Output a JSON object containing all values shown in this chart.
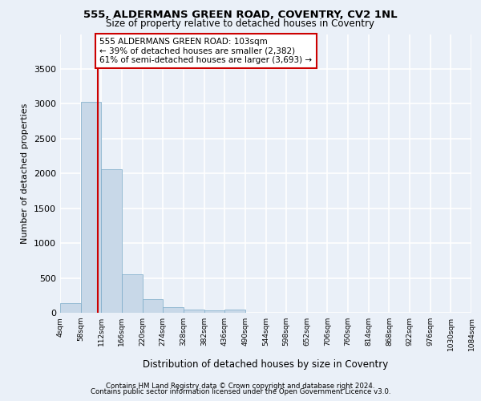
{
  "title_line1": "555, ALDERMANS GREEN ROAD, COVENTRY, CV2 1NL",
  "title_line2": "Size of property relative to detached houses in Coventry",
  "xlabel": "Distribution of detached houses by size in Coventry",
  "ylabel": "Number of detached properties",
  "bin_edges": [
    4,
    58,
    112,
    166,
    220,
    274,
    328,
    382,
    436,
    490,
    544,
    598,
    652,
    706,
    760,
    814,
    868,
    922,
    976,
    1030,
    1084
  ],
  "bar_heights": [
    140,
    3030,
    2060,
    550,
    195,
    75,
    50,
    35,
    50,
    0,
    0,
    0,
    0,
    0,
    0,
    0,
    0,
    0,
    0,
    0
  ],
  "bar_color": "#c8d8e8",
  "bar_edgecolor": "#7aaac8",
  "property_size": 103,
  "vline_color": "#cc0000",
  "annotation_line1": "555 ALDERMANS GREEN ROAD: 103sqm",
  "annotation_line2": "← 39% of detached houses are smaller (2,382)",
  "annotation_line3": "61% of semi-detached houses are larger (3,693) →",
  "annotation_box_edgecolor": "#cc0000",
  "ylim": [
    0,
    4000
  ],
  "yticks": [
    0,
    500,
    1000,
    1500,
    2000,
    2500,
    3000,
    3500
  ],
  "footer_line1": "Contains HM Land Registry data © Crown copyright and database right 2024.",
  "footer_line2": "Contains public sector information licensed under the Open Government Licence v3.0.",
  "background_color": "#eaf0f8",
  "plot_bg_color": "#eaf0f8",
  "grid_color": "#ffffff"
}
